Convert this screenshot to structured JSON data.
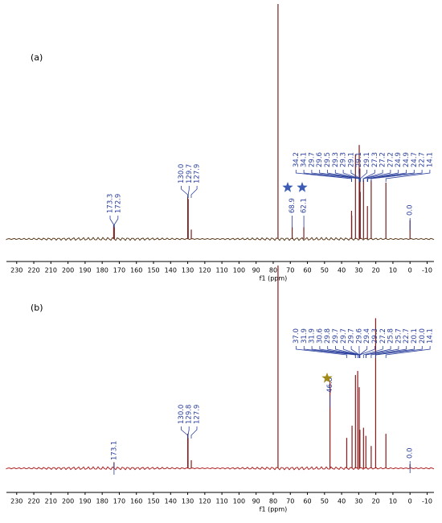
{
  "chart_data": [
    {
      "type": "spectrum",
      "panel_label": "(a)",
      "xlabel": "f1 (ppm)",
      "xlim": [
        236,
        -14
      ],
      "xticks": [
        230,
        220,
        210,
        200,
        190,
        180,
        170,
        160,
        150,
        140,
        130,
        120,
        110,
        100,
        90,
        80,
        70,
        60,
        50,
        40,
        30,
        20,
        10,
        0,
        -10
      ],
      "ylim": [
        0,
        100
      ],
      "color": "#7a1f1f",
      "x": [
        173.3,
        172.9,
        130.0,
        129.7,
        127.9,
        77.2,
        68.9,
        62.1,
        34.2,
        34.1,
        31.9,
        29.7,
        29.3,
        29.1,
        27.2,
        24.9,
        22.7,
        14.1,
        0.0
      ],
      "values": [
        6,
        5,
        18,
        17,
        4,
        100,
        5,
        5,
        12,
        10,
        36,
        40,
        30,
        20,
        25,
        14,
        25,
        24,
        8
      ],
      "peak_labels": [
        [
          "173.3",
          "172.9"
        ],
        [
          "130.0",
          "129.7",
          "127.9"
        ],
        [
          "68.9"
        ],
        [
          "62.1"
        ],
        [
          "34.2",
          "34.1",
          "29.7",
          "29.6",
          "29.5",
          "29.3",
          "29.3",
          "29.1",
          "29.1",
          "29.1",
          "27.3",
          "27.2",
          "27.2",
          "24.9",
          "24.9",
          "24.7",
          "22.7",
          "14.1"
        ],
        [
          "0.0"
        ]
      ]
    },
    {
      "type": "spectrum",
      "panel_label": "(b)",
      "xlabel": "f1 (ppm)",
      "xlim": [
        236,
        -14
      ],
      "xticks": [
        230,
        220,
        210,
        200,
        190,
        180,
        170,
        160,
        150,
        140,
        130,
        120,
        110,
        100,
        90,
        80,
        70,
        60,
        50,
        40,
        30,
        20,
        10,
        0,
        -10
      ],
      "ylim": [
        0,
        100
      ],
      "color": "#8a1a1a",
      "x": [
        173.1,
        130.0,
        129.8,
        127.9,
        77.2,
        46.8,
        37.0,
        33.9,
        31.9,
        30.6,
        29.7,
        29.3,
        27.2,
        25.8,
        22.7,
        20.1,
        14.1,
        0.0
      ],
      "values": [
        3,
        17,
        15,
        4,
        100,
        43,
        15,
        21,
        46,
        48,
        40,
        19,
        20,
        16,
        11,
        74,
        17,
        2
      ],
      "peak_labels": [
        [
          "173.1"
        ],
        [
          "130.0",
          "129.8",
          "127.9"
        ],
        [
          "46.8"
        ],
        [
          "37.0",
          "31.9",
          "31.9",
          "30.6",
          "29.8",
          "29.7",
          "29.7",
          "29.7",
          "29.6",
          "29.4",
          "29.3",
          "27.2",
          "25.8",
          "25.7",
          "22.7",
          "20.1",
          "20.0",
          "14.1"
        ],
        [
          "0.0"
        ]
      ]
    }
  ]
}
